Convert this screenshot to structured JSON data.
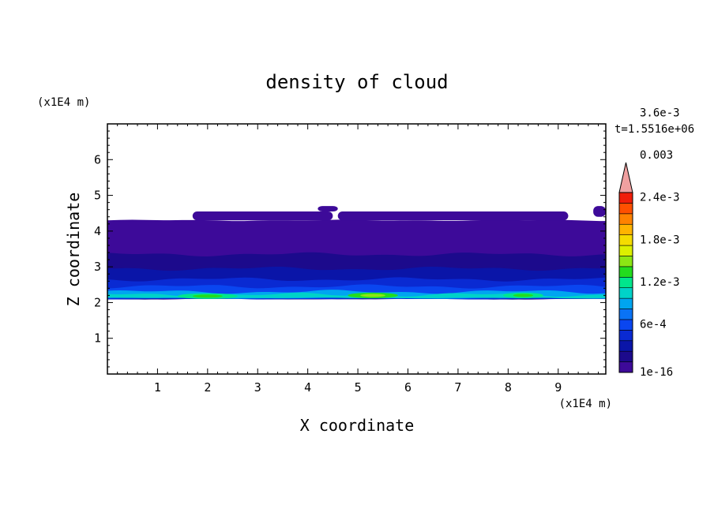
{
  "chart_data": {
    "type": "heatmap",
    "title": "density of cloud",
    "time_label": "t=1.5516e+06",
    "xlabel": "X coordinate",
    "ylabel": "Z coordinate",
    "x_unit": "(x1E4 m)",
    "y_unit": "(x1E4 m)",
    "xlim": [
      0,
      9.95
    ],
    "ylim": [
      0,
      7
    ],
    "x_ticks": [
      1,
      2,
      3,
      4,
      5,
      6,
      7,
      8,
      9
    ],
    "y_ticks": [
      1,
      2,
      3,
      4,
      5,
      6
    ],
    "colorbar": {
      "levels": [
        "#3d0a99",
        "#1c0a8c",
        "#0a15a8",
        "#0a2ad2",
        "#0a46f0",
        "#0a73f5",
        "#00a5f0",
        "#00d2c8",
        "#00e68c",
        "#23dc1e",
        "#8ce614",
        "#dcf000",
        "#f5dc00",
        "#ffb400",
        "#ff8200",
        "#ff5000",
        "#f01e0a"
      ],
      "overflow_color": "#f0a0a0",
      "labels": [
        {
          "text": "1e-16",
          "level": 0
        },
        {
          "text": "6e-4",
          "level": 2
        },
        {
          "text": "1.2e-3",
          "level": 4
        },
        {
          "text": "1.8e-3",
          "level": 6
        },
        {
          "text": "2.4e-3",
          "level": 8
        },
        {
          "text": "0.003",
          "level": 10
        },
        {
          "text": "3.6e-3",
          "level": 12
        }
      ]
    },
    "cloud_bands": [
      {
        "z_bottom": 2.1,
        "z_top": 4.3,
        "level": 0
      },
      {
        "z_bottom": 2.1,
        "z_top": 3.35,
        "level": 1
      },
      {
        "z_bottom": 2.1,
        "z_top": 2.95,
        "level": 2
      },
      {
        "z_bottom": 2.1,
        "z_top": 2.65,
        "level": 3
      },
      {
        "z_bottom": 2.12,
        "z_top": 2.45,
        "level": 4
      },
      {
        "z_bottom": 2.12,
        "z_top": 2.3,
        "level": 6
      },
      {
        "z_bottom": 2.13,
        "z_top": 2.22,
        "level": 7
      }
    ],
    "upper_patches": [
      {
        "x0": 1.7,
        "x1": 4.5,
        "z_bottom": 4.3,
        "z_top": 4.55
      },
      {
        "x0": 4.2,
        "x1": 4.6,
        "z_bottom": 4.55,
        "z_top": 4.7
      },
      {
        "x0": 4.6,
        "x1": 9.2,
        "z_bottom": 4.3,
        "z_top": 4.55
      },
      {
        "x0": 9.7,
        "x1": 9.95,
        "z_bottom": 4.4,
        "z_top": 4.7
      }
    ],
    "hotspots": [
      {
        "x": 2.0,
        "z": 2.18,
        "width": 1.2,
        "level": 9
      },
      {
        "x": 5.3,
        "z": 2.2,
        "width": 1.0,
        "level": 10
      },
      {
        "x": 8.3,
        "z": 2.2,
        "width": 0.8,
        "level": 9
      }
    ]
  }
}
